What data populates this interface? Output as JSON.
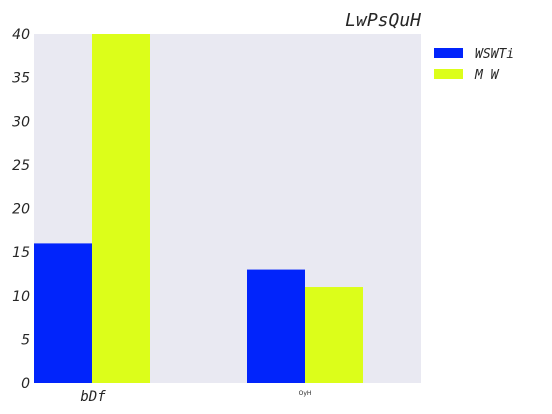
{
  "chart_data": {
    "type": "bar",
    "title": "LwPsQuH",
    "categories": [
      "bDf",
      "OyH"
    ],
    "series": [
      {
        "name": "WSWTi",
        "values": [
          16,
          13
        ],
        "color": "#0124fb"
      },
      {
        "name": "M W",
        "values": [
          40,
          11
        ],
        "color": "#dcfe1a"
      }
    ],
    "ylim": [
      0,
      40
    ],
    "yticks": [
      0,
      5,
      10,
      15,
      20,
      25,
      30,
      35,
      40
    ],
    "xlabel": "",
    "ylabel": "",
    "grid": false,
    "legend_position": "right",
    "background_color": "#e9e9f2"
  }
}
